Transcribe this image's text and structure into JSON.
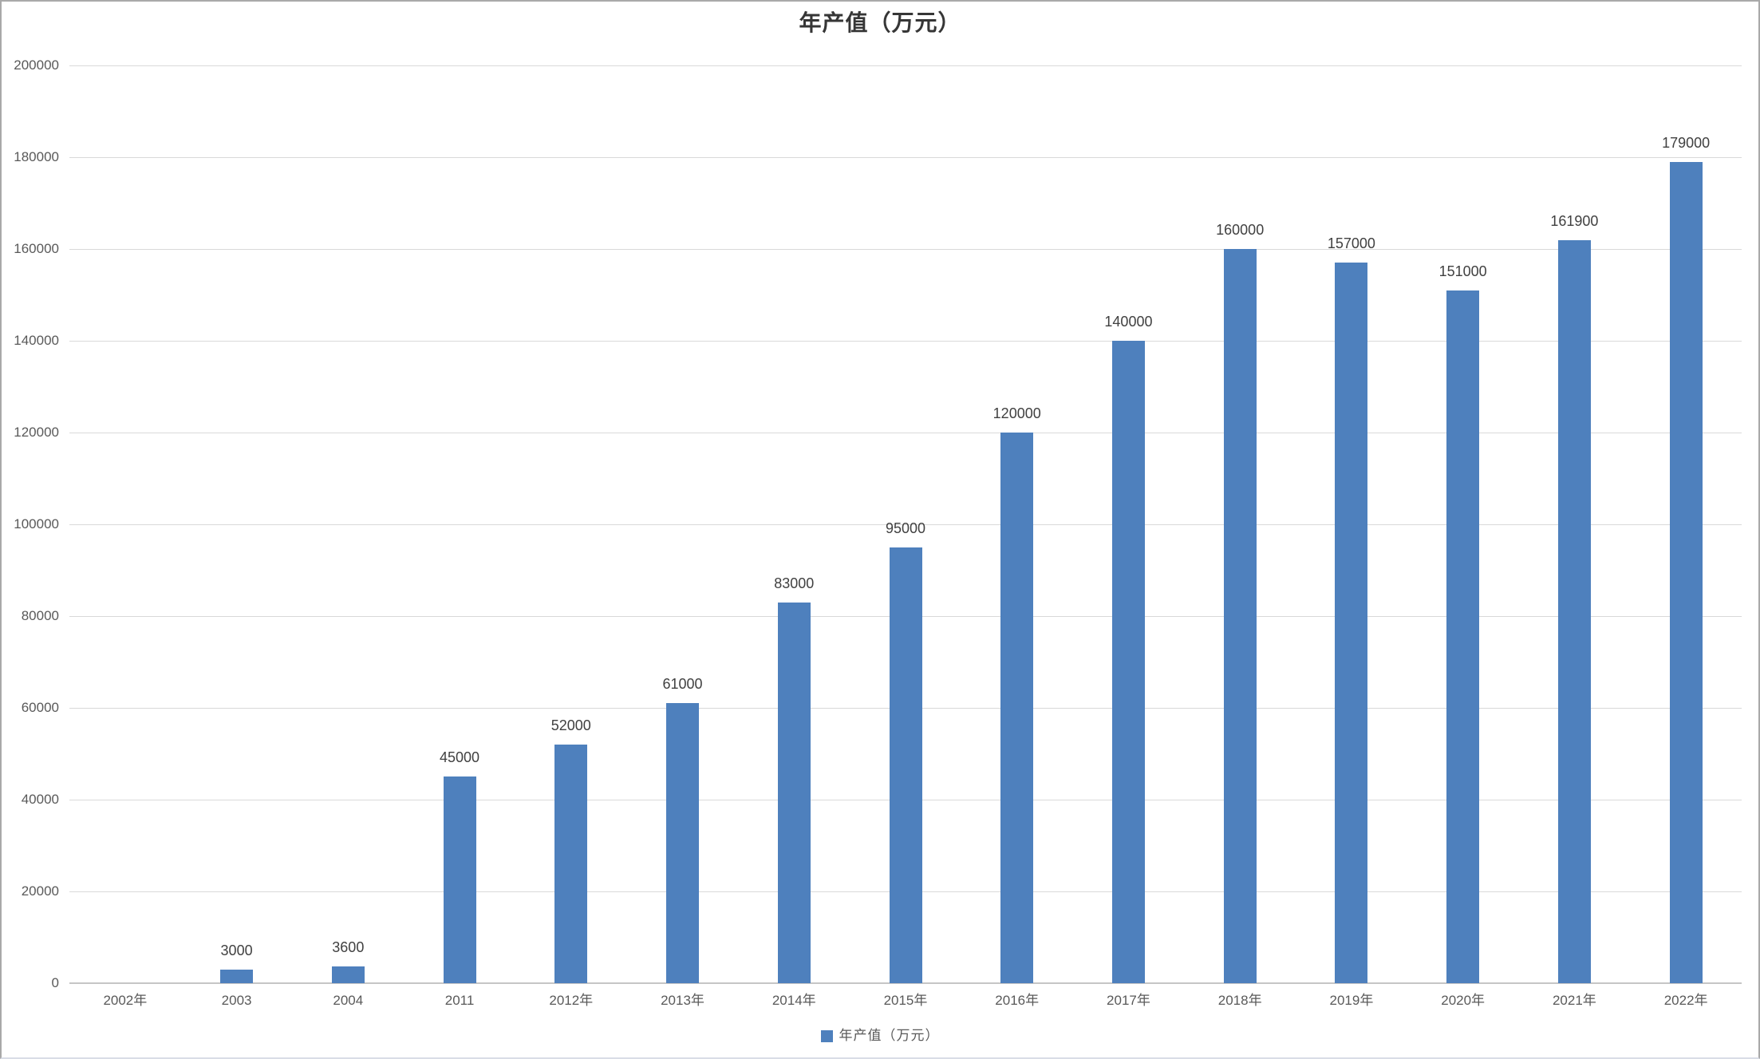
{
  "window": {
    "background": "#ffffff",
    "border_color": "#a9a9a9",
    "bottom_border_color": "#d9dde6"
  },
  "chart_data": {
    "type": "bar",
    "title": "年产值（万元）",
    "categories": [
      "2002年",
      "2003",
      "2004",
      "2011",
      "2012年",
      "2013年",
      "2014年",
      "2015年",
      "2016年",
      "2017年",
      "2018年",
      "2019年",
      "2020年",
      "2021年",
      "2022年"
    ],
    "values": [
      0,
      3000,
      3600,
      45000,
      52000,
      61000,
      83000,
      95000,
      120000,
      140000,
      160000,
      157000,
      151000,
      161900,
      179000
    ],
    "data_labels": [
      "",
      "3000",
      "3600",
      "45000",
      "52000",
      "61000",
      "83000",
      "95000",
      "120000",
      "140000",
      "160000",
      "157000",
      "151000",
      "161900",
      "179000"
    ],
    "xlabel": "",
    "ylabel": "",
    "ylim": [
      0,
      200000
    ],
    "y_ticks": [
      0,
      20000,
      40000,
      60000,
      80000,
      100000,
      120000,
      140000,
      160000,
      180000,
      200000
    ],
    "y_tick_labels": [
      "0",
      "20000",
      "40000",
      "60000",
      "80000",
      "100000",
      "120000",
      "140000",
      "160000",
      "180000",
      "200000"
    ],
    "grid": true,
    "legend_position": "bottom",
    "legend": {
      "entries": [
        {
          "label": "年产值（万元）",
          "color": "#4e80bd"
        }
      ]
    },
    "colors": {
      "bar": "#4e80bd",
      "gridline": "#d9d9d9",
      "axis_line": "#c6c6c6",
      "tick_label": "#595959",
      "data_label": "#404040",
      "title": "#363636"
    }
  }
}
